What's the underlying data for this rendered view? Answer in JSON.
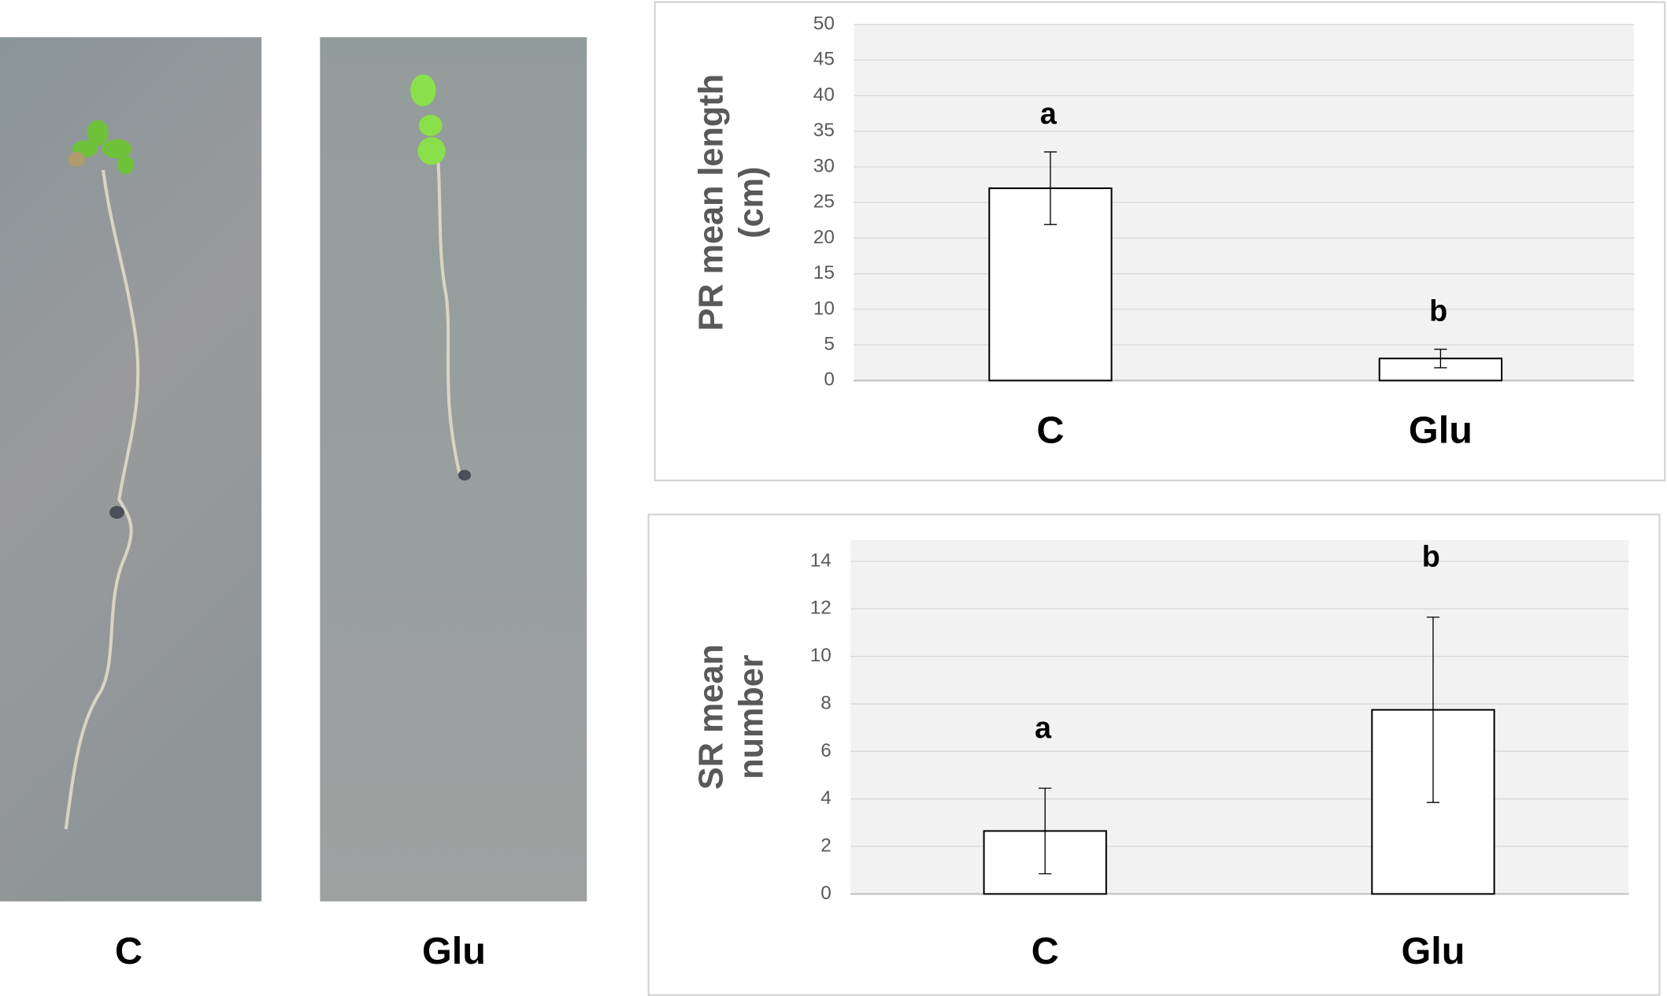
{
  "photos": [
    {
      "label": "C"
    },
    {
      "label": "Glu"
    }
  ],
  "chart_data": [
    {
      "type": "bar",
      "ylabel": [
        "PR mean length",
        "(cm)"
      ],
      "categories": [
        "C",
        "Glu"
      ],
      "values": [
        27,
        3.1
      ],
      "errors": [
        5.1,
        1.3
      ],
      "annotations": [
        "a",
        "b"
      ],
      "ylim": [
        0,
        50
      ],
      "yticks": [
        0,
        5,
        10,
        15,
        20,
        25,
        30,
        35,
        40,
        45,
        50
      ],
      "grid": true,
      "color": "#ffffff"
    },
    {
      "type": "bar",
      "ylabel": [
        "SR mean",
        "number"
      ],
      "categories": [
        "C",
        "Glu"
      ],
      "values": [
        2.65,
        7.75
      ],
      "errors": [
        1.8,
        3.9
      ],
      "annotations": [
        "a",
        "b"
      ],
      "ylim": [
        0,
        14.9
      ],
      "yticks": [
        0,
        2,
        4,
        6,
        8,
        10,
        12,
        14
      ],
      "grid": true,
      "color": "#ffffff"
    }
  ]
}
